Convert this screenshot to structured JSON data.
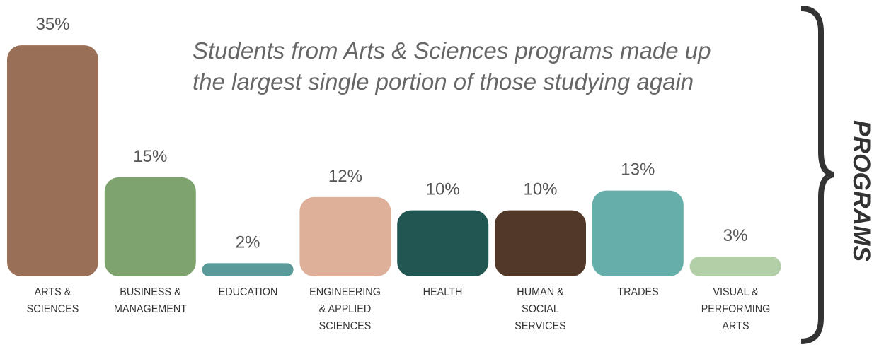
{
  "chart_data": {
    "type": "bar",
    "annotation": "Students from Arts & Sciences programs made up\nthe largest single portion of those studying again",
    "axis_label": "PROGRAMS",
    "categories": [
      "ARTS &\nSCIENCES",
      "BUSINESS &\nMANAGEMENT",
      "EDUCATION",
      "ENGINEERING\n& APPLIED\nSCIENCES",
      "HEALTH",
      "HUMAN &\nSOCIAL\nSERVICES",
      "TRADES",
      "VISUAL &\nPERFORMING\nARTS"
    ],
    "values": [
      35,
      15,
      2,
      12,
      10,
      10,
      13,
      3
    ],
    "value_labels": [
      "35%",
      "15%",
      "2%",
      "12%",
      "10%",
      "10%",
      "13%",
      "3%"
    ],
    "colors": [
      "#9a6f57",
      "#7ea36f",
      "#5a9a98",
      "#deb09a",
      "#225652",
      "#523829",
      "#66aeaa",
      "#b2cfa8"
    ]
  }
}
